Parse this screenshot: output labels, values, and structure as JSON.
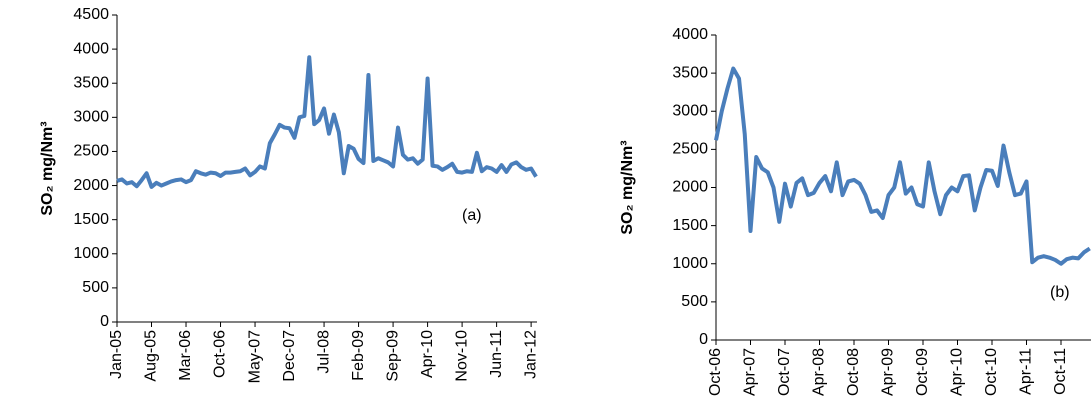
{
  "chart_data": [
    {
      "type": "line",
      "y_label": "SO₂ mg/Nm³",
      "annotation": "(a)",
      "color": "#4a7ebb",
      "categories": [
        "Jan-05",
        null,
        null,
        null,
        null,
        null,
        null,
        "Aug-05",
        null,
        null,
        null,
        null,
        null,
        null,
        "Mar-06",
        null,
        null,
        null,
        null,
        null,
        null,
        "Oct-06",
        null,
        null,
        null,
        null,
        null,
        null,
        "May-07",
        null,
        null,
        null,
        null,
        null,
        null,
        "Dec-07",
        null,
        null,
        null,
        null,
        null,
        null,
        "Jul-08",
        null,
        null,
        null,
        null,
        null,
        null,
        "Feb-09",
        null,
        null,
        null,
        null,
        null,
        null,
        "Sep-09",
        null,
        null,
        null,
        null,
        null,
        null,
        "Apr-10",
        null,
        null,
        null,
        null,
        null,
        null,
        "Nov-10",
        null,
        null,
        null,
        null,
        null,
        null,
        "Jun-11",
        null,
        null,
        null,
        null,
        null,
        null,
        "Jan-12",
        null
      ],
      "values": [
        2070,
        2090,
        2030,
        2050,
        1990,
        2080,
        2180,
        1980,
        2040,
        2000,
        2030,
        2060,
        2080,
        2090,
        2050,
        2080,
        2210,
        2180,
        2160,
        2190,
        2180,
        2140,
        2190,
        2190,
        2200,
        2210,
        2250,
        2150,
        2200,
        2280,
        2250,
        2620,
        2750,
        2890,
        2850,
        2840,
        2700,
        3000,
        3020,
        3880,
        2900,
        2960,
        3130,
        2760,
        3040,
        2780,
        2180,
        2580,
        2540,
        2390,
        2330,
        3620,
        2360,
        2400,
        2370,
        2340,
        2280,
        2850,
        2450,
        2380,
        2400,
        2320,
        2380,
        3570,
        2290,
        2280,
        2230,
        2270,
        2320,
        2200,
        2190,
        2210,
        2200,
        2480,
        2210,
        2270,
        2250,
        2200,
        2300,
        2200,
        2310,
        2340,
        2270,
        2230,
        2250,
        2130
      ],
      "ylim": [
        0,
        4500
      ],
      "yticks": [
        0,
        500,
        1000,
        1500,
        2000,
        2500,
        3000,
        3500,
        4000,
        4500
      ]
    },
    {
      "type": "line",
      "y_label": "SO₂ mg/Nm³",
      "annotation": "(b)",
      "color": "#4a7ebb",
      "categories": [
        "Oct-06",
        null,
        null,
        null,
        null,
        null,
        "Apr-07",
        null,
        null,
        null,
        null,
        null,
        "Oct-07",
        null,
        null,
        null,
        null,
        null,
        "Apr-08",
        null,
        null,
        null,
        null,
        null,
        "Oct-08",
        null,
        null,
        null,
        null,
        null,
        "Apr-09",
        null,
        null,
        null,
        null,
        null,
        "Oct-09",
        null,
        null,
        null,
        null,
        null,
        "Apr-10",
        null,
        null,
        null,
        null,
        null,
        "Oct-10",
        null,
        null,
        null,
        null,
        null,
        "Apr-11",
        null,
        null,
        null,
        null,
        null,
        "Oct-11",
        null,
        null,
        null,
        null,
        null
      ],
      "values": [
        2620,
        3000,
        3300,
        3560,
        3430,
        2700,
        1430,
        2400,
        2250,
        2200,
        2000,
        1550,
        2050,
        1750,
        2060,
        2120,
        1900,
        1930,
        2060,
        2150,
        1950,
        2330,
        1900,
        2080,
        2100,
        2050,
        1900,
        1680,
        1700,
        1600,
        1900,
        2000,
        2330,
        1920,
        2000,
        1780,
        1750,
        2330,
        1950,
        1650,
        1900,
        2000,
        1950,
        2150,
        2160,
        1700,
        2000,
        2230,
        2220,
        2020,
        2550,
        2200,
        1900,
        1920,
        2080,
        1020,
        1080,
        1100,
        1080,
        1050,
        1000,
        1060,
        1080,
        1070,
        1150,
        1200
      ],
      "ylim": [
        0,
        4000
      ],
      "yticks": [
        0,
        500,
        1000,
        1500,
        2000,
        2500,
        3000,
        3500,
        4000
      ]
    }
  ]
}
